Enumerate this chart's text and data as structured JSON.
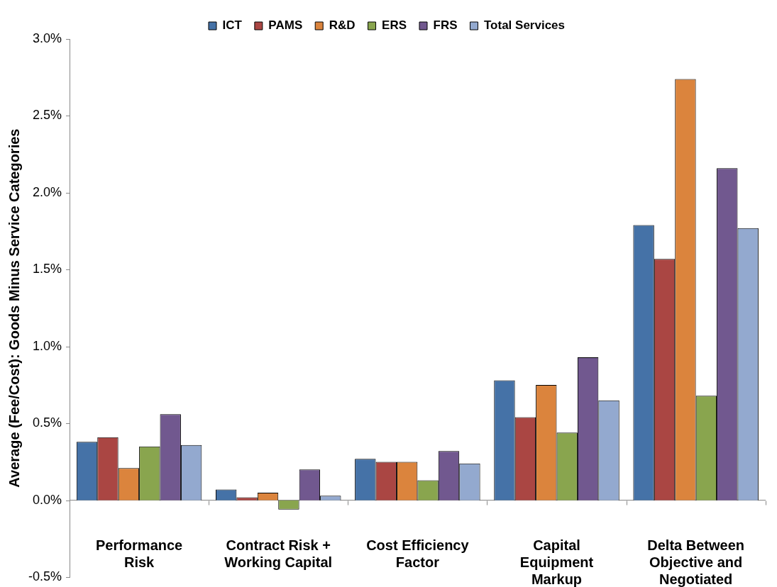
{
  "chart_data": {
    "type": "bar",
    "ylabel": "Average (Fee/Cost): Goods Minus Service Categories",
    "categories": [
      "Performance Risk",
      "Contract Risk + Working Capital",
      "Cost Efficiency Factor",
      "Capital Equipment Markup",
      "Delta Between Objective and Negotiated"
    ],
    "series": [
      {
        "name": "ICT",
        "color": "#4572a7",
        "values": [
          0.38,
          0.07,
          0.27,
          0.78,
          1.79
        ]
      },
      {
        "name": "PAMS",
        "color": "#aa4643",
        "values": [
          0.41,
          0.02,
          0.25,
          0.54,
          1.57
        ]
      },
      {
        "name": "R&D",
        "color": "#db843d",
        "values": [
          0.21,
          0.05,
          0.25,
          0.75,
          2.74
        ]
      },
      {
        "name": "ERS",
        "color": "#89a54e",
        "values": [
          0.35,
          -0.06,
          0.13,
          0.44,
          0.68
        ]
      },
      {
        "name": "FRS",
        "color": "#71588f",
        "values": [
          0.56,
          0.2,
          0.32,
          0.93,
          2.16
        ]
      },
      {
        "name": "Total Services",
        "color": "#93a9cf",
        "values": [
          0.36,
          0.03,
          0.24,
          0.65,
          1.77
        ]
      }
    ],
    "ylim": [
      -0.5,
      3
    ],
    "yticks": [
      {
        "value": -0.5,
        "label": "-0.5%"
      },
      {
        "value": 0,
        "label": "0.0%"
      },
      {
        "value": 0.5,
        "label": "0.5%"
      },
      {
        "value": 1,
        "label": "1.0%"
      },
      {
        "value": 1.5,
        "label": "1.5%"
      },
      {
        "value": 2,
        "label": "2.0%"
      },
      {
        "value": 2.5,
        "label": "2.5%"
      },
      {
        "value": 3,
        "label": "3.0%"
      }
    ],
    "legend": "top"
  }
}
